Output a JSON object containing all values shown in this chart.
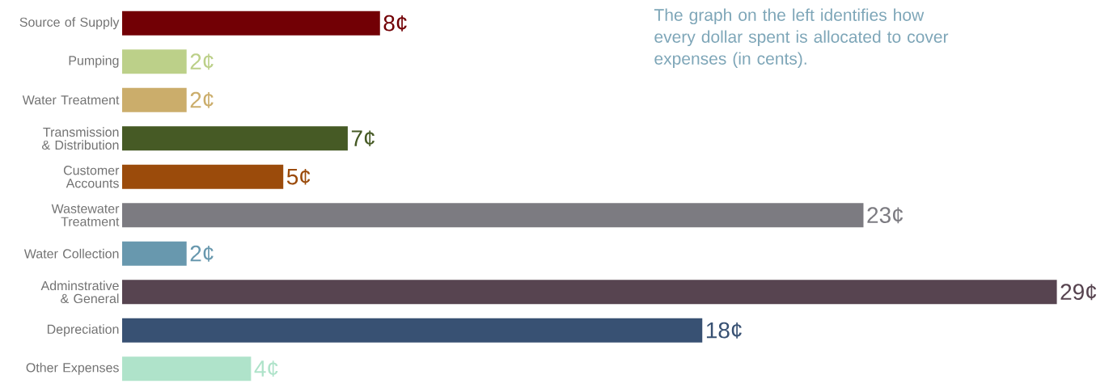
{
  "chart_data": {
    "type": "bar",
    "orientation": "horizontal",
    "categories": [
      "Source of Supply",
      "Pumping",
      "Water Treatment",
      "Transmission & Distribution",
      "Customer Accounts",
      "Wastewater Treatment",
      "Water Collection",
      "Adminstrative & General",
      "Depreciation",
      "Other Expenses"
    ],
    "values": [
      8,
      2,
      2,
      7,
      5,
      23,
      2,
      29,
      18,
      4
    ],
    "value_labels": [
      "8¢",
      "2¢",
      "2¢",
      "7¢",
      "5¢",
      "23¢",
      "2¢",
      "29¢",
      "18¢",
      "4¢"
    ],
    "colors": [
      "#720005",
      "#bcd089",
      "#cbad6b",
      "#465a25",
      "#9b4b0b",
      "#7c7b81",
      "#6898ae",
      "#574450",
      "#385173",
      "#afe3ca"
    ],
    "annotations": [
      "The graph on the left identifies how every dollar spent is allocated to cover expenses (in cents)."
    ]
  }
}
